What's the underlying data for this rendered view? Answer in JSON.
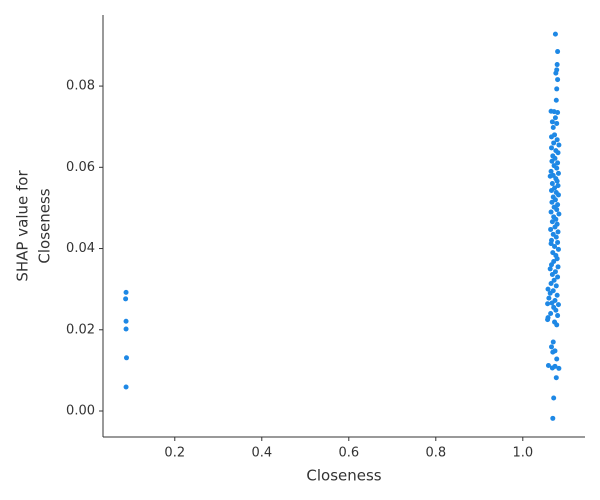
{
  "chart_data": {
    "type": "scatter",
    "x_label": "Closeness",
    "y_label": [
      "SHAP value for",
      "Closeness"
    ],
    "color": "#1e88e5",
    "xlim": [
      0.035,
      1.143
    ],
    "ylim": [
      -0.0064,
      0.0975
    ],
    "xticks": [
      0.2,
      0.4,
      0.6,
      0.8,
      {
        "value": 1,
        "label": "1.0"
      }
    ],
    "yticks": [
      {
        "value": 0,
        "label": "0.00"
      },
      {
        "value": 0.02,
        "label": "0.02"
      },
      {
        "value": 0.04,
        "label": "0.04"
      },
      {
        "value": 0.06,
        "label": "0.06"
      },
      {
        "value": 0.08,
        "label": "0.08"
      }
    ],
    "x": [
      0.088,
      0.087,
      0.088,
      0.088,
      0.089,
      0.088,
      1.075,
      1.08,
      1.079,
      1.078,
      1.076,
      1.08,
      1.078,
      1.077,
      1.065,
      1.072,
      1.08,
      1.075,
      1.068,
      1.078,
      1.07,
      1.073,
      1.066,
      1.079,
      1.071,
      1.083,
      1.066,
      1.076,
      1.081,
      1.069,
      1.074,
      1.067,
      1.08,
      1.072,
      1.078,
      1.065,
      1.082,
      1.07,
      1.063,
      1.076,
      1.079,
      1.068,
      1.081,
      1.073,
      1.066,
      1.077,
      1.082,
      1.07,
      1.075,
      1.067,
      1.08,
      1.072,
      1.078,
      1.065,
      1.083,
      1.071,
      1.076,
      1.068,
      1.079,
      1.074,
      1.064,
      1.081,
      1.07,
      1.077,
      1.066,
      1.065,
      1.08,
      1.073,
      1.082,
      1.069,
      1.076,
      1.079,
      1.071,
      1.066,
      1.081,
      1.063,
      1.075,
      1.068,
      1.08,
      1.072,
      1.065,
      1.077,
      1.058,
      1.07,
      1.063,
      1.079,
      1.06,
      1.074,
      1.067,
      1.082,
      1.057,
      1.071,
      1.076,
      1.064,
      1.08,
      1.058,
      1.057,
      1.073,
      1.078,
      1.07,
      1.066,
      1.074,
      1.069,
      1.078,
      1.059,
      1.074,
      1.083,
      1.068,
      1.077,
      1.071,
      1.069
    ],
    "y": [
      0.0292,
      0.0276,
      0.0221,
      0.0202,
      0.0131,
      0.0059,
      0.0928,
      0.0885,
      0.0853,
      0.084,
      0.0832,
      0.0816,
      0.0793,
      0.0765,
      0.0738,
      0.0737,
      0.0735,
      0.0722,
      0.0712,
      0.0708,
      0.0698,
      0.068,
      0.0675,
      0.0668,
      0.066,
      0.0655,
      0.0648,
      0.0641,
      0.0636,
      0.0628,
      0.0622,
      0.0615,
      0.0611,
      0.0604,
      0.0598,
      0.059,
      0.0585,
      0.058,
      0.0578,
      0.0572,
      0.0566,
      0.056,
      0.0555,
      0.0549,
      0.0543,
      0.0538,
      0.0532,
      0.0527,
      0.052,
      0.0514,
      0.0508,
      0.0502,
      0.0496,
      0.049,
      0.0485,
      0.0478,
      0.0472,
      0.0466,
      0.046,
      0.0453,
      0.0447,
      0.0441,
      0.0435,
      0.0428,
      0.042,
      0.0412,
      0.0415,
      0.0405,
      0.0398,
      0.039,
      0.0383,
      0.0375,
      0.0368,
      0.036,
      0.0355,
      0.035,
      0.0343,
      0.0336,
      0.033,
      0.0322,
      0.0314,
      0.0308,
      0.03,
      0.0296,
      0.029,
      0.0285,
      0.0278,
      0.0272,
      0.0266,
      0.0262,
      0.0264,
      0.0255,
      0.0248,
      0.024,
      0.0235,
      0.023,
      0.0225,
      0.0219,
      0.0212,
      0.017,
      0.0158,
      0.0148,
      0.0145,
      0.0128,
      0.0112,
      0.011,
      0.0105,
      0.0106,
      0.0082,
      0.0032,
      -0.0018
    ]
  }
}
